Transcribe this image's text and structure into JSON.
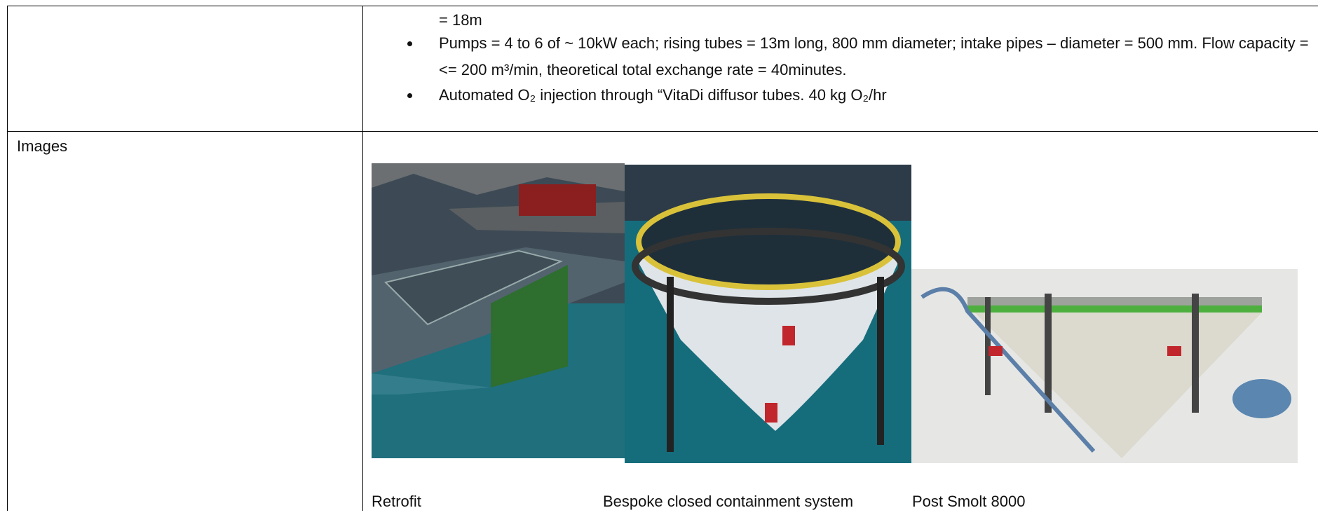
{
  "table": {
    "rows": [
      {
        "label": "",
        "continuation": "= 18m",
        "bullets": [
          "Pumps = 4 to 6 of ~ 10kW each; rising tubes = 13m long, 800 mm diameter; intake pipes – diameter = 500 mm.  Flow capacity = <= 200 m³/min, theoretical total exchange rate = 40minutes.",
          "Automated O₂ injection through “VitaDi diffusor tubes. 40 kg O₂/hr"
        ]
      },
      {
        "label": "Images",
        "captions": [
          "Retrofit",
          "Bespoke closed containment system",
          "Post Smolt 8000"
        ]
      }
    ]
  }
}
